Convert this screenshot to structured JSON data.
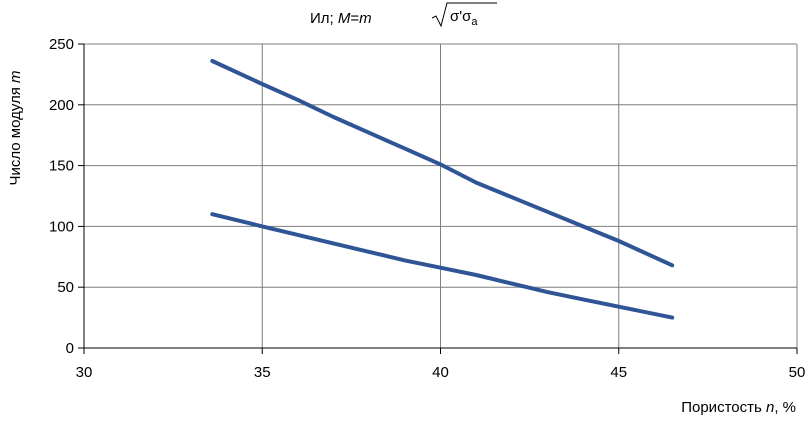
{
  "chart_data": {
    "type": "line",
    "title_prefix": "Ил; ",
    "title_M": "M",
    "title_equals": "=",
    "title_m": "m",
    "title_sigma1": "σ'σ",
    "title_sub": "a",
    "xlabel_prefix": "Пористость ",
    "xlabel_var": "n",
    "xlabel_suffix": ", %",
    "ylabel_prefix": "Число модуля ",
    "ylabel_var": "m",
    "xlim": [
      30,
      50
    ],
    "ylim": [
      0,
      250
    ],
    "xticks": [
      "30",
      "35",
      "40",
      "45",
      "50"
    ],
    "yticks": [
      "0",
      "50",
      "100",
      "150",
      "200",
      "250"
    ],
    "grid": true,
    "line_color": "#2f5597",
    "series": [
      {
        "x": [
          33.6,
          35,
          36,
          37,
          38,
          39,
          40,
          41,
          42,
          43,
          44,
          45,
          46.5
        ],
        "y": [
          236,
          217,
          204,
          190,
          177,
          164,
          151,
          136,
          124,
          112,
          100,
          88,
          68
        ]
      },
      {
        "x": [
          33.6,
          35,
          36,
          37,
          38,
          39,
          40,
          41,
          42,
          43,
          44,
          45,
          46.5
        ],
        "y": [
          110,
          100,
          93,
          86,
          79,
          72,
          66,
          60,
          53,
          46,
          40,
          34,
          25
        ]
      }
    ]
  }
}
